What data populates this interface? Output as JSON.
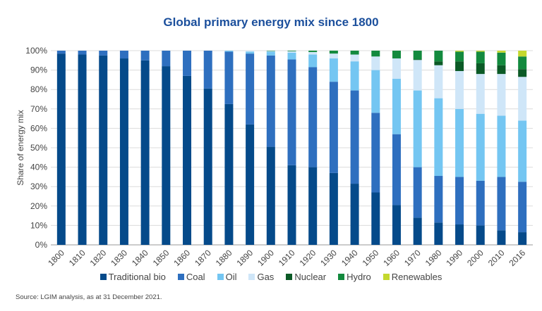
{
  "chart_data": {
    "type": "bar",
    "stacked": true,
    "title": "Global primary energy mix since 1800",
    "xlabel": "",
    "ylabel": "Share of energy mix",
    "ylim": [
      0,
      100
    ],
    "yticks": [
      "0%",
      "10%",
      "20%",
      "30%",
      "40%",
      "50%",
      "60%",
      "70%",
      "80%",
      "90%",
      "100%"
    ],
    "grid": true,
    "legend_position": "bottom",
    "categories": [
      "1800",
      "1810",
      "1820",
      "1830",
      "1840",
      "1850",
      "1860",
      "1870",
      "1880",
      "1890",
      "1900",
      "1910",
      "1920",
      "1930",
      "1940",
      "1950",
      "1960",
      "1970",
      "1980",
      "1990",
      "2000",
      "2010",
      "2016"
    ],
    "series": [
      {
        "name": "Traditional bio",
        "color": "#054a8a",
        "values": [
          98.5,
          98,
          97.5,
          96,
          95,
          92,
          87,
          80.5,
          72.5,
          62,
          50.5,
          41,
          40,
          37,
          31.5,
          27,
          20.5,
          14,
          11.5,
          10.5,
          10,
          7.5,
          6.5
        ]
      },
      {
        "name": "Coal",
        "color": "#2e6fbf",
        "values": [
          1.5,
          2,
          2.5,
          4,
          5,
          8,
          13,
          19.5,
          27,
          36.5,
          47,
          54.5,
          51.5,
          47,
          48,
          41,
          36.5,
          26,
          24,
          24.5,
          23,
          27.5,
          26
        ]
      },
      {
        "name": "Oil",
        "color": "#74c6f2",
        "values": [
          0,
          0,
          0,
          0,
          0,
          0,
          0,
          0,
          0.5,
          1,
          2,
          3.5,
          6.5,
          12,
          15,
          22,
          28.5,
          39.5,
          40,
          35,
          34.5,
          31.5,
          31.5
        ]
      },
      {
        "name": "Gas",
        "color": "#cfe6f8",
        "values": [
          0,
          0,
          0,
          0,
          0,
          0,
          0,
          0,
          0,
          0.5,
          0.3,
          0.7,
          1.3,
          2.5,
          3.5,
          7,
          10.5,
          15.7,
          17,
          19.5,
          20.5,
          21.5,
          22.5
        ]
      },
      {
        "name": "Nuclear",
        "color": "#0b5a26",
        "values": [
          0,
          0,
          0,
          0,
          0,
          0,
          0,
          0,
          0,
          0,
          0,
          0,
          0,
          0,
          0,
          0,
          0,
          0.3,
          2,
          5,
          5.5,
          4.5,
          4
        ]
      },
      {
        "name": "Hydro",
        "color": "#138a3e",
        "values": [
          0,
          0,
          0,
          0,
          0,
          0,
          0,
          0,
          0,
          0,
          0.2,
          0.3,
          0.7,
          1.5,
          2,
          3,
          4,
          4.5,
          5.5,
          5,
          6,
          6.5,
          6.5
        ]
      },
      {
        "name": "Renewables",
        "color": "#c4d82e",
        "values": [
          0,
          0,
          0,
          0,
          0,
          0,
          0,
          0,
          0,
          0,
          0,
          0,
          0,
          0,
          0,
          0,
          0,
          0,
          0,
          0.5,
          0.5,
          1,
          3
        ]
      }
    ]
  },
  "source": "Source: LGIM analysis, as at 31 December 2021."
}
